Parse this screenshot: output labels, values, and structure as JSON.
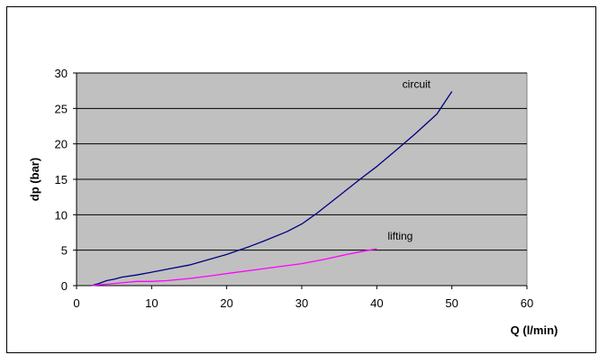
{
  "chart_data": {
    "type": "line",
    "xlabel": "Q (l/min)",
    "ylabel": "dp (bar)",
    "xlim": [
      0,
      60
    ],
    "ylim": [
      0,
      30
    ],
    "x_ticks": [
      0,
      10,
      20,
      30,
      40,
      50,
      60
    ],
    "y_ticks": [
      0,
      5,
      10,
      15,
      20,
      25,
      30
    ],
    "grid": "horizontal",
    "plot_background": "#c0c0c0",
    "series": [
      {
        "name": "circuit",
        "color": "#000080",
        "points": [
          [
            2,
            0
          ],
          [
            3,
            0.3
          ],
          [
            4,
            0.7
          ],
          [
            5,
            0.9
          ],
          [
            6,
            1.2
          ],
          [
            8,
            1.5
          ],
          [
            10,
            1.9
          ],
          [
            12,
            2.3
          ],
          [
            15,
            2.9
          ],
          [
            18,
            3.8
          ],
          [
            20,
            4.4
          ],
          [
            23,
            5.5
          ],
          [
            25,
            6.3
          ],
          [
            28,
            7.6
          ],
          [
            30,
            8.7
          ],
          [
            32,
            10.2
          ],
          [
            35,
            12.7
          ],
          [
            38,
            15.2
          ],
          [
            40,
            16.8
          ],
          [
            42,
            18.6
          ],
          [
            45,
            21.3
          ],
          [
            48,
            24.2
          ],
          [
            50,
            27.4
          ]
        ]
      },
      {
        "name": "lifting",
        "color": "#ff00ff",
        "points": [
          [
            2,
            0
          ],
          [
            4,
            0.2
          ],
          [
            6,
            0.4
          ],
          [
            7,
            0.5
          ],
          [
            8,
            0.6
          ],
          [
            10,
            0.6
          ],
          [
            12,
            0.7
          ],
          [
            15,
            1.0
          ],
          [
            18,
            1.4
          ],
          [
            20,
            1.7
          ],
          [
            25,
            2.4
          ],
          [
            30,
            3.1
          ],
          [
            33,
            3.7
          ],
          [
            36,
            4.4
          ],
          [
            38,
            4.8
          ],
          [
            40,
            5.2
          ]
        ]
      }
    ]
  }
}
